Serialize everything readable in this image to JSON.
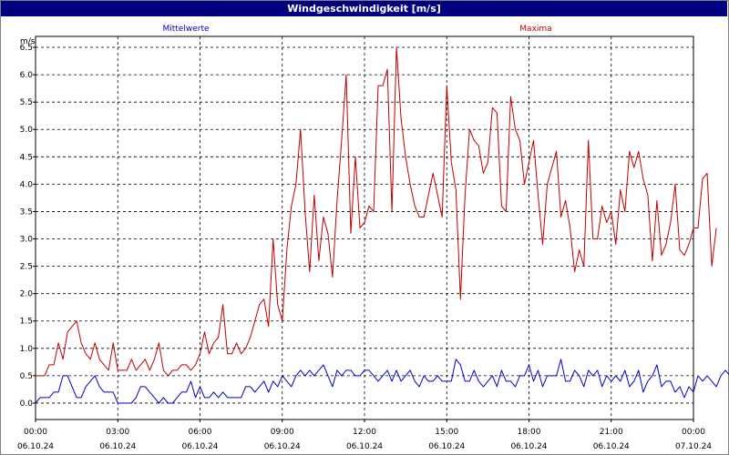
{
  "window": {
    "title": "Windgeschwindigkeit [m/s]"
  },
  "chart_data": {
    "type": "line",
    "title": "Windgeschwindigkeit [m/s]",
    "ylabel": "m/s",
    "ylim": [
      -0.3,
      6.7
    ],
    "yticks": [
      "0.0",
      "0.5",
      "1.0",
      "1.5",
      "2.0",
      "2.5",
      "3.0",
      "3.5",
      "4.0",
      "4.5",
      "5.0",
      "5.5",
      "6.0",
      "6.5"
    ],
    "xlim": [
      "06.10.24 00:00",
      "07.10.24 00:00"
    ],
    "xticks": [
      {
        "time": "00:00",
        "date": "06.10.24"
      },
      {
        "time": "03:00",
        "date": "06.10.24"
      },
      {
        "time": "06:00",
        "date": "06.10.24"
      },
      {
        "time": "09:00",
        "date": "06.10.24"
      },
      {
        "time": "12:00",
        "date": "06.10.24"
      },
      {
        "time": "15:00",
        "date": "06.10.24"
      },
      {
        "time": "18:00",
        "date": "06.10.24"
      },
      {
        "time": "21:00",
        "date": "06.10.24"
      },
      {
        "time": "00:00",
        "date": "07.10.24"
      }
    ],
    "grid": true,
    "sample_interval_minutes": 10,
    "series": [
      {
        "name": "Mittelwerte",
        "color": "#0000cc",
        "values": [
          0.0,
          0.1,
          0.1,
          0.1,
          0.2,
          0.2,
          0.5,
          0.5,
          0.3,
          0.1,
          0.1,
          0.3,
          0.4,
          0.5,
          0.3,
          0.2,
          0.2,
          0.2,
          0.0,
          0.0,
          0.0,
          0.0,
          0.1,
          0.3,
          0.3,
          0.2,
          0.1,
          0.0,
          0.1,
          0.0,
          0.0,
          0.1,
          0.2,
          0.2,
          0.4,
          0.1,
          0.3,
          0.1,
          0.1,
          0.2,
          0.1,
          0.2,
          0.1,
          0.1,
          0.1,
          0.1,
          0.3,
          0.3,
          0.2,
          0.3,
          0.4,
          0.2,
          0.4,
          0.3,
          0.5,
          0.4,
          0.3,
          0.5,
          0.6,
          0.5,
          0.6,
          0.5,
          0.6,
          0.7,
          0.5,
          0.3,
          0.6,
          0.5,
          0.6,
          0.6,
          0.5,
          0.5,
          0.6,
          0.6,
          0.5,
          0.4,
          0.5,
          0.6,
          0.4,
          0.6,
          0.4,
          0.5,
          0.6,
          0.4,
          0.3,
          0.5,
          0.4,
          0.4,
          0.5,
          0.4,
          0.4,
          0.4,
          0.8,
          0.7,
          0.4,
          0.4,
          0.6,
          0.4,
          0.3,
          0.4,
          0.5,
          0.3,
          0.6,
          0.4,
          0.4,
          0.3,
          0.5,
          0.5,
          0.7,
          0.4,
          0.6,
          0.3,
          0.5,
          0.5,
          0.5,
          0.8,
          0.4,
          0.4,
          0.6,
          0.5,
          0.3,
          0.6,
          0.5,
          0.6,
          0.3,
          0.5,
          0.4,
          0.5,
          0.4,
          0.6,
          0.3,
          0.4,
          0.6,
          0.2,
          0.4,
          0.5,
          0.7,
          0.3,
          0.4,
          0.4,
          0.2,
          0.3,
          0.1,
          0.3,
          0.2,
          0.5,
          0.4,
          0.5,
          0.4,
          0.3,
          0.5,
          0.6,
          0.5,
          0.3
        ]
      },
      {
        "name": "Maxima",
        "color": "#c00000",
        "values": [
          0.5,
          0.5,
          0.5,
          0.7,
          0.7,
          1.1,
          0.8,
          1.3,
          1.4,
          1.5,
          1.1,
          0.9,
          0.8,
          1.1,
          0.8,
          0.7,
          0.6,
          1.1,
          0.6,
          0.6,
          0.6,
          0.8,
          0.6,
          0.7,
          0.8,
          0.6,
          0.8,
          1.1,
          0.6,
          0.5,
          0.6,
          0.6,
          0.7,
          0.7,
          0.6,
          0.7,
          0.9,
          1.3,
          0.9,
          1.1,
          1.2,
          1.8,
          0.9,
          0.9,
          1.1,
          0.9,
          1.0,
          1.2,
          1.5,
          1.8,
          1.9,
          1.4,
          3.0,
          1.8,
          1.5,
          2.8,
          3.6,
          4.0,
          5.0,
          3.5,
          2.4,
          3.8,
          2.6,
          3.4,
          3.1,
          2.3,
          3.7,
          4.8,
          6.0,
          3.1,
          4.5,
          3.2,
          3.3,
          3.6,
          3.5,
          5.8,
          5.8,
          6.1,
          3.5,
          6.5,
          5.2,
          4.5,
          4.0,
          3.6,
          3.4,
          3.4,
          3.8,
          4.2,
          3.8,
          3.4,
          5.8,
          4.4,
          3.9,
          1.9,
          3.8,
          5.0,
          4.8,
          4.7,
          4.2,
          4.4,
          5.4,
          5.3,
          3.6,
          3.5,
          5.6,
          5.0,
          4.8,
          4.0,
          4.4,
          4.8,
          3.8,
          2.9,
          4.0,
          4.3,
          4.6,
          3.4,
          3.7,
          3.2,
          2.4,
          2.8,
          2.5,
          4.8,
          3.0,
          3.0,
          3.6,
          3.3,
          3.5,
          2.9,
          3.9,
          3.5,
          4.6,
          4.3,
          4.6,
          4.1,
          3.8,
          2.6,
          3.7,
          2.7,
          2.9,
          3.3,
          4.0,
          2.8,
          2.7,
          2.9,
          3.2,
          3.2,
          4.1,
          4.2,
          2.5,
          3.2
        ]
      }
    ]
  }
}
